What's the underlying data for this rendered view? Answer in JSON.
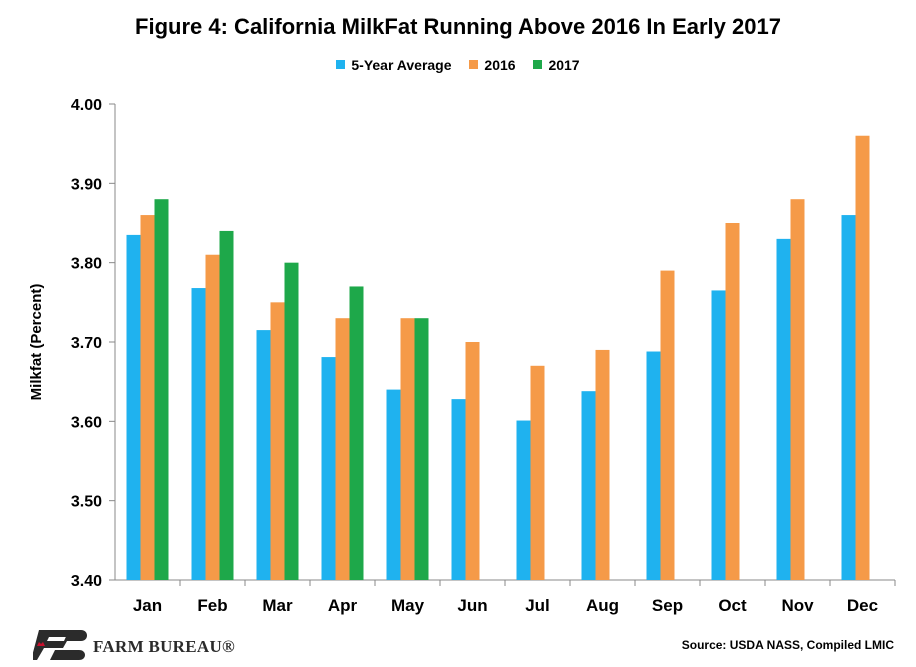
{
  "chart_data": {
    "type": "bar",
    "title": "Figure 4: California MilkFat Running Above 2016 In Early 2017",
    "xlabel": "",
    "ylabel": "Milkfat (Percent)",
    "ylim": [
      3.4,
      4.0
    ],
    "yticks": [
      "3.40",
      "3.50",
      "3.60",
      "3.70",
      "3.80",
      "3.90",
      "4.00"
    ],
    "categories": [
      "Jan",
      "Feb",
      "Mar",
      "Apr",
      "May",
      "Jun",
      "Jul",
      "Aug",
      "Sep",
      "Oct",
      "Nov",
      "Dec"
    ],
    "series": [
      {
        "name": "5-Year Average",
        "color": "#1fb2ef",
        "values": [
          3.835,
          3.768,
          3.715,
          3.681,
          3.64,
          3.628,
          3.601,
          3.638,
          3.688,
          3.765,
          3.83,
          3.86
        ]
      },
      {
        "name": "2016",
        "color": "#f59a48",
        "values": [
          3.86,
          3.81,
          3.75,
          3.73,
          3.73,
          3.7,
          3.67,
          3.69,
          3.79,
          3.85,
          3.88,
          3.96
        ]
      },
      {
        "name": "2017",
        "color": "#1ea84a",
        "values": [
          3.88,
          3.84,
          3.8,
          3.77,
          3.73,
          null,
          null,
          null,
          null,
          null,
          null,
          null
        ]
      }
    ],
    "grid": false,
    "legend_position": "top"
  },
  "footer": {
    "source": "Source: USDA NASS, Compiled LMIC",
    "logo_text": "FARM BUREAU®",
    "logo_icon": "farm-bureau-logo-icon"
  }
}
